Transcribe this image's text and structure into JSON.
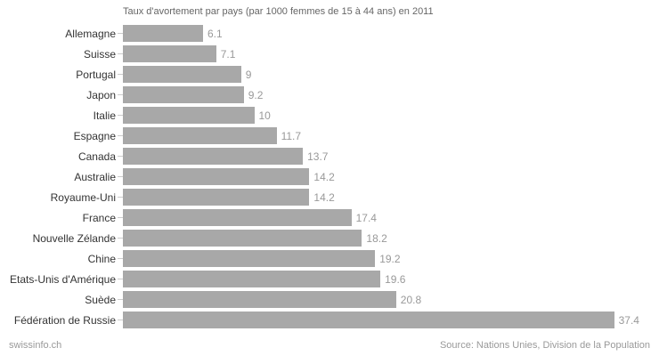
{
  "chart_data": {
    "type": "bar",
    "orientation": "horizontal",
    "title": "Taux d'avortement par pays (par 1000 femmes de 15 à 44 ans) en 2011",
    "categories": [
      "Allemagne",
      "Suisse",
      "Portugal",
      "Japon",
      "Italie",
      "Espagne",
      "Canada",
      "Australie",
      "Royaume-Uni",
      "France",
      "Nouvelle Zélande",
      "Chine",
      "Etats-Unis d'Amérique",
      "Suède",
      "Fédération de Russie"
    ],
    "values": [
      6.1,
      7.1,
      9,
      9.2,
      10,
      11.7,
      13.7,
      14.2,
      14.2,
      17.4,
      18.2,
      19.2,
      19.6,
      20.8,
      37.4
    ],
    "xlabel": "",
    "ylabel": "",
    "xlim": [
      0,
      40
    ],
    "grid": false,
    "legend": false,
    "data_labels": true,
    "colors": {
      "bar": "#a8a8a8",
      "value_label": "#999999",
      "category_label": "#333333",
      "title": "#666666",
      "tick": "#cccccc",
      "footer_text": "#999999",
      "background": "#ffffff"
    }
  },
  "footer": {
    "brand": "swissinfo.ch",
    "source": "Source: Nations Unies, Division de la Population"
  }
}
